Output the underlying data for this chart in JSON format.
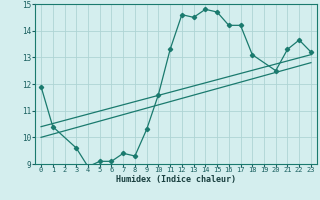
{
  "xlabel": "Humidex (Indice chaleur)",
  "ylabel": "",
  "bg_color": "#d4eeee",
  "line_color": "#1a7a6e",
  "grid_color": "#aed4d4",
  "xlim": [
    -0.5,
    23.5
  ],
  "ylim": [
    9,
    15
  ],
  "yticks": [
    9,
    10,
    11,
    12,
    13,
    14,
    15
  ],
  "xticks": [
    0,
    1,
    2,
    3,
    4,
    5,
    6,
    7,
    8,
    9,
    10,
    11,
    12,
    13,
    14,
    15,
    16,
    17,
    18,
    19,
    20,
    21,
    22,
    23
  ],
  "line1_x": [
    0,
    1,
    3,
    4,
    5,
    6,
    7,
    8,
    9,
    10,
    11,
    12,
    13,
    14,
    15,
    16,
    17,
    18,
    20,
    21,
    22,
    23
  ],
  "line1_y": [
    11.9,
    10.4,
    9.6,
    8.9,
    9.1,
    9.1,
    9.4,
    9.3,
    10.3,
    11.6,
    13.3,
    14.6,
    14.5,
    14.8,
    14.7,
    14.2,
    14.2,
    13.1,
    12.5,
    13.3,
    13.65,
    13.2
  ],
  "line2_x": [
    0,
    23
  ],
  "line2_y": [
    10.4,
    13.1
  ],
  "line3_x": [
    0,
    23
  ],
  "line3_y": [
    10.0,
    12.8
  ],
  "marker": "D",
  "markersize": 2.2,
  "linewidth": 0.9,
  "xlabel_fontsize": 6.0,
  "tick_fontsize": 5.0,
  "ytick_fontsize": 5.5
}
